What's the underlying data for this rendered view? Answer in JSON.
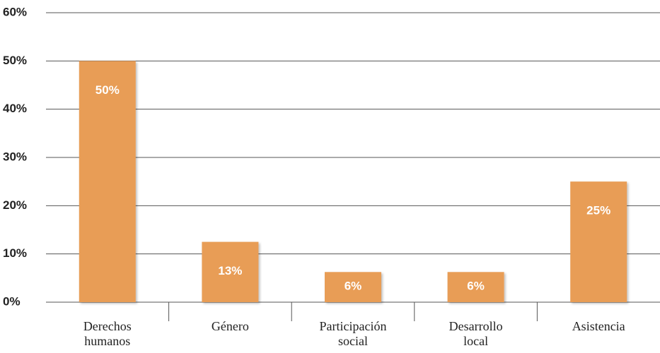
{
  "chart_data": {
    "type": "bar",
    "categories": [
      "Derechos humanos",
      "Género",
      "Participación social",
      "Desarrollo local",
      "Asistencia"
    ],
    "values": [
      50,
      12.5,
      6.25,
      6.25,
      25
    ],
    "value_labels": [
      "50%",
      "13%",
      "6%",
      "6%",
      "25%"
    ],
    "color": "#e89d56",
    "ylim": [
      0,
      60
    ],
    "yticks": [
      {
        "value": 0,
        "label": "0%"
      },
      {
        "value": 10,
        "label": "10%"
      },
      {
        "value": 20,
        "label": "20%"
      },
      {
        "value": 30,
        "label": "30%"
      },
      {
        "value": 40,
        "label": "40%"
      },
      {
        "value": 50,
        "label": "50%"
      },
      {
        "value": 60,
        "label": "60%"
      }
    ],
    "grid": true
  }
}
